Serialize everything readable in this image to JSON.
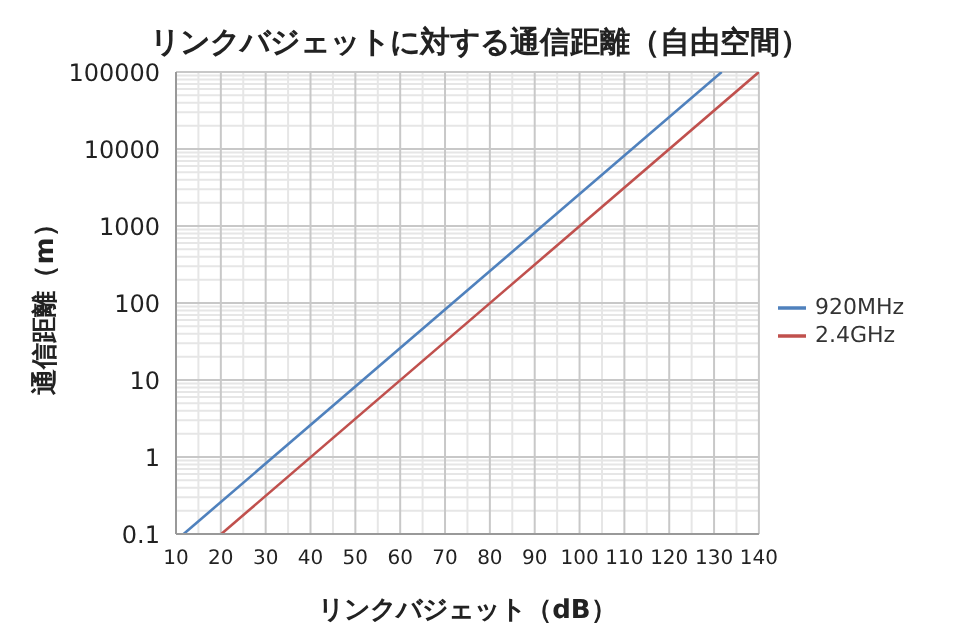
{
  "chart_data": {
    "type": "line",
    "title": "リンクバジェットに対する通信距離（自由空間）",
    "xlabel": "リンクバジェット（dB）",
    "ylabel": "通信距離（m）",
    "series": [
      {
        "name": "920MHz",
        "color": "#4f81bd",
        "x": [
          11.7,
          131.7
        ],
        "values": [
          0.1,
          100000
        ]
      },
      {
        "name": "2.4GHz",
        "color": "#c0504d",
        "x": [
          20.1,
          140
        ],
        "values": [
          0.1,
          100000
        ]
      }
    ],
    "xlim": [
      10,
      140
    ],
    "xticks": [
      10,
      20,
      30,
      40,
      50,
      60,
      70,
      80,
      90,
      100,
      110,
      120,
      130,
      140
    ],
    "ylim": [
      0.1,
      100000
    ],
    "yticks": [
      0.1,
      1,
      10,
      100,
      1000,
      10000,
      100000
    ],
    "log": "y",
    "grid": true,
    "legend": "right",
    "marker": "none",
    "line_style": "solid"
  }
}
